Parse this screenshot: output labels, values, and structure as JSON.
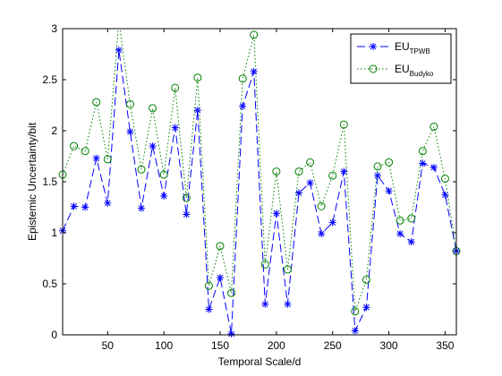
{
  "chart_data": {
    "type": "line",
    "xlabel": "Temporal Scale/d",
    "ylabel": "Epistemic Uncertainty/bit",
    "xlim": [
      10,
      360
    ],
    "ylim": [
      0,
      3
    ],
    "xticks": [
      50,
      100,
      150,
      200,
      250,
      300,
      350
    ],
    "yticks": [
      0,
      0.5,
      1,
      1.5,
      2,
      2.5,
      3
    ],
    "grid": false,
    "legend_position": "top-right",
    "x": [
      10,
      20,
      30,
      40,
      50,
      60,
      70,
      80,
      90,
      100,
      110,
      120,
      130,
      140,
      150,
      160,
      170,
      180,
      190,
      200,
      210,
      220,
      230,
      240,
      250,
      260,
      270,
      280,
      290,
      300,
      310,
      320,
      330,
      340,
      350,
      360
    ],
    "series": [
      {
        "name": "TPWB",
        "legend_prefix": "EU",
        "legend_sub": "TPWB",
        "color": "#0000ff",
        "line_style": "dashed",
        "marker": "star",
        "values": [
          1.02,
          1.26,
          1.25,
          1.73,
          1.29,
          2.79,
          1.99,
          1.24,
          1.85,
          1.36,
          2.03,
          1.18,
          2.2,
          0.25,
          0.56,
          0.01,
          2.24,
          2.58,
          0.3,
          1.19,
          0.3,
          1.39,
          1.49,
          0.99,
          1.1,
          1.6,
          0.04,
          0.27,
          1.56,
          1.41,
          0.99,
          0.91,
          1.68,
          1.64,
          1.37,
          0.82
        ]
      },
      {
        "name": "Budyko",
        "legend_prefix": "EU",
        "legend_sub": "Budyko",
        "color": "#008000",
        "line_style": "dotted",
        "marker": "circle",
        "values": [
          1.57,
          1.85,
          1.8,
          2.28,
          1.72,
          3.08,
          2.26,
          1.62,
          2.22,
          1.57,
          2.42,
          1.34,
          2.52,
          0.48,
          0.87,
          0.41,
          2.51,
          2.94,
          0.69,
          1.6,
          0.64,
          1.6,
          1.69,
          1.26,
          1.56,
          2.06,
          0.23,
          0.54,
          1.65,
          1.69,
          1.12,
          1.14,
          1.8,
          2.04,
          1.53,
          0.82
        ]
      }
    ]
  }
}
